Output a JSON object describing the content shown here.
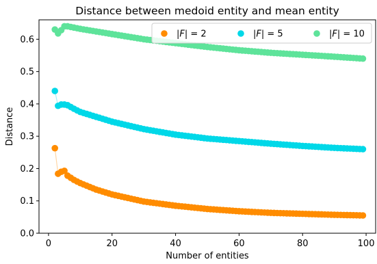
{
  "chart_data": {
    "type": "scatter",
    "title": "Distance between medoid entity and mean entity",
    "xlabel": "Number of entities",
    "ylabel": "Distance",
    "xlim": [
      -3,
      103
    ],
    "ylim": [
      0.0,
      0.66
    ],
    "xticks": [
      0,
      20,
      40,
      60,
      80,
      100
    ],
    "yticks": [
      0.0,
      0.1,
      0.2,
      0.3,
      0.4,
      0.5,
      0.6
    ],
    "xtick_labels": [
      "0",
      "20",
      "40",
      "60",
      "80",
      "100"
    ],
    "ytick_labels": [
      "0.0",
      "0.1",
      "0.2",
      "0.3",
      "0.4",
      "0.5",
      "0.6"
    ],
    "grid": false,
    "legend_position": "top-right",
    "x_range": [
      2,
      99
    ],
    "series": [
      {
        "name": "|F| = 2",
        "legend_base": "|F|",
        "legend_value": "= 2",
        "color": "#ff8c00",
        "key_points": {
          "2": 0.263,
          "3": 0.184,
          "4": 0.19,
          "5": 0.193,
          "6": 0.178,
          "8": 0.165,
          "10": 0.155,
          "15": 0.135,
          "20": 0.12,
          "30": 0.098,
          "40": 0.085,
          "50": 0.075,
          "60": 0.068,
          "70": 0.063,
          "80": 0.06,
          "90": 0.057,
          "99": 0.055
        }
      },
      {
        "name": "|F| = 5",
        "legend_base": "|F|",
        "legend_value": "= 5",
        "color": "#00d8e8",
        "key_points": {
          "2": 0.44,
          "3": 0.394,
          "4": 0.398,
          "5": 0.398,
          "6": 0.396,
          "8": 0.385,
          "10": 0.375,
          "15": 0.36,
          "20": 0.345,
          "30": 0.322,
          "40": 0.305,
          "50": 0.293,
          "60": 0.285,
          "70": 0.277,
          "80": 0.27,
          "90": 0.264,
          "99": 0.26
        }
      },
      {
        "name": "|F| = 10",
        "legend_base": "|F|",
        "legend_value": "= 10",
        "color": "#5ee39a",
        "key_points": {
          "2": 0.63,
          "3": 0.618,
          "4": 0.628,
          "5": 0.64,
          "6": 0.64,
          "8": 0.636,
          "10": 0.632,
          "15": 0.624,
          "20": 0.616,
          "30": 0.6,
          "40": 0.588,
          "50": 0.576,
          "60": 0.566,
          "70": 0.558,
          "80": 0.552,
          "90": 0.546,
          "99": 0.54
        }
      }
    ]
  }
}
